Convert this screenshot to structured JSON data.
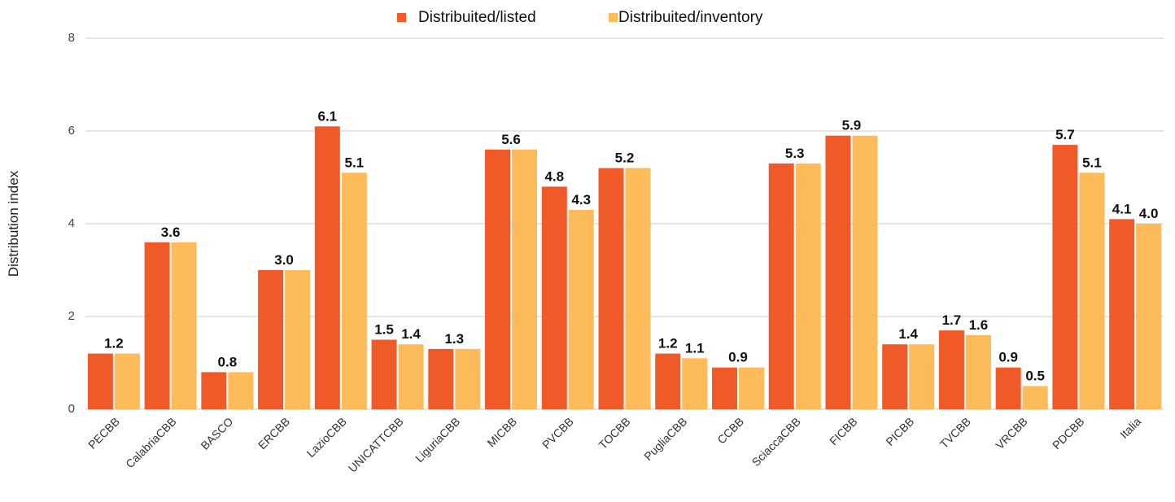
{
  "chart_data": {
    "type": "bar",
    "y_label": "Distribution index",
    "categories": [
      "PECBB",
      "CalabriaCBB",
      "BASCO",
      "ERCBB",
      "LazioCBB",
      "UNICATTCBB",
      "LiguriaCBB",
      "MICBB",
      "PVCBB",
      "TOCBB",
      "PugliaCBB",
      "CCBB",
      "SciaccaCBB",
      "FICBB",
      "PICBB",
      "TVCBB",
      "VRCBB",
      "PDCBB",
      "Italia"
    ],
    "series": [
      {
        "name": "Distribuited/listed",
        "color": "#f05a28",
        "values": [
          1.2,
          3.6,
          0.8,
          3.0,
          6.1,
          1.5,
          1.3,
          5.6,
          4.8,
          5.2,
          1.2,
          0.9,
          5.3,
          5.9,
          1.4,
          1.7,
          0.9,
          5.7,
          4.1
        ],
        "value_labels": [
          "1.2",
          "3.6",
          "0.8",
          "3.0",
          "6.1",
          "1.5",
          "1.3",
          "5.6",
          "4.8",
          "5.2",
          "1.2",
          "0.9",
          "5.3",
          "5.9",
          "1.4",
          "1.7",
          "0.9",
          "5.7",
          "4.1"
        ]
      },
      {
        "name": "Distribuited/inventory",
        "color": "#fdbb5a",
        "values": [
          1.2,
          3.6,
          0.8,
          3.0,
          5.1,
          1.4,
          1.3,
          5.6,
          4.3,
          5.2,
          1.1,
          0.9,
          5.3,
          5.9,
          1.4,
          1.6,
          0.5,
          5.1,
          4.0
        ],
        "value_labels": [
          null,
          null,
          null,
          null,
          "5.1",
          "1.4",
          null,
          null,
          "4.3",
          null,
          "1.1",
          null,
          null,
          null,
          null,
          "1.6",
          "0.5",
          "5.1",
          "4.0"
        ]
      }
    ],
    "ylim": [
      0,
      8
    ],
    "yticks": [
      0,
      2,
      4,
      6,
      8
    ],
    "grid": true,
    "legend": "top"
  }
}
